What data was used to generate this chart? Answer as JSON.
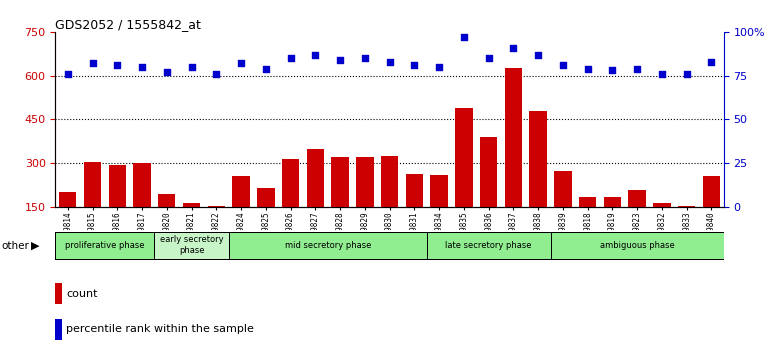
{
  "title": "GDS2052 / 1555842_at",
  "samples": [
    "GSM109814",
    "GSM109815",
    "GSM109816",
    "GSM109817",
    "GSM109820",
    "GSM109821",
    "GSM109822",
    "GSM109824",
    "GSM109825",
    "GSM109826",
    "GSM109827",
    "GSM109828",
    "GSM109829",
    "GSM109830",
    "GSM109831",
    "GSM109834",
    "GSM109835",
    "GSM109836",
    "GSM109837",
    "GSM109838",
    "GSM109839",
    "GSM109818",
    "GSM109819",
    "GSM109823",
    "GSM109832",
    "GSM109833",
    "GSM109840"
  ],
  "counts": [
    200,
    305,
    295,
    300,
    195,
    165,
    155,
    255,
    215,
    315,
    350,
    320,
    320,
    325,
    265,
    260,
    490,
    390,
    625,
    480,
    275,
    185,
    185,
    210,
    165,
    155,
    255
  ],
  "percentiles": [
    76,
    82,
    81,
    80,
    77,
    80,
    76,
    82,
    79,
    85,
    87,
    84,
    85,
    83,
    81,
    80,
    97,
    85,
    91,
    87,
    81,
    79,
    78,
    79,
    76,
    76,
    83
  ],
  "bar_color": "#cc0000",
  "dot_color": "#0000cc",
  "phases": [
    {
      "label": "proliferative phase",
      "start": 0,
      "end": 4,
      "color": "#90ee90"
    },
    {
      "label": "early secretory\nphase",
      "start": 4,
      "end": 7,
      "color": "#c8f5c8"
    },
    {
      "label": "mid secretory phase",
      "start": 7,
      "end": 15,
      "color": "#90ee90"
    },
    {
      "label": "late secretory phase",
      "start": 15,
      "end": 20,
      "color": "#90ee90"
    },
    {
      "label": "ambiguous phase",
      "start": 20,
      "end": 27,
      "color": "#90ee90"
    }
  ],
  "ylim_left": [
    150,
    750
  ],
  "ylim_right": [
    0,
    100
  ],
  "yticks_left": [
    150,
    300,
    450,
    600,
    750
  ],
  "yticks_right": [
    0,
    25,
    50,
    75,
    100
  ],
  "grid_values": [
    300,
    450,
    600
  ],
  "left_axis_color": "#cc0000",
  "right_axis_color": "#0000cc",
  "background_color": "#ffffff",
  "plot_bg_color": "#ffffff",
  "tick_bg_color": "#d8d8d8"
}
